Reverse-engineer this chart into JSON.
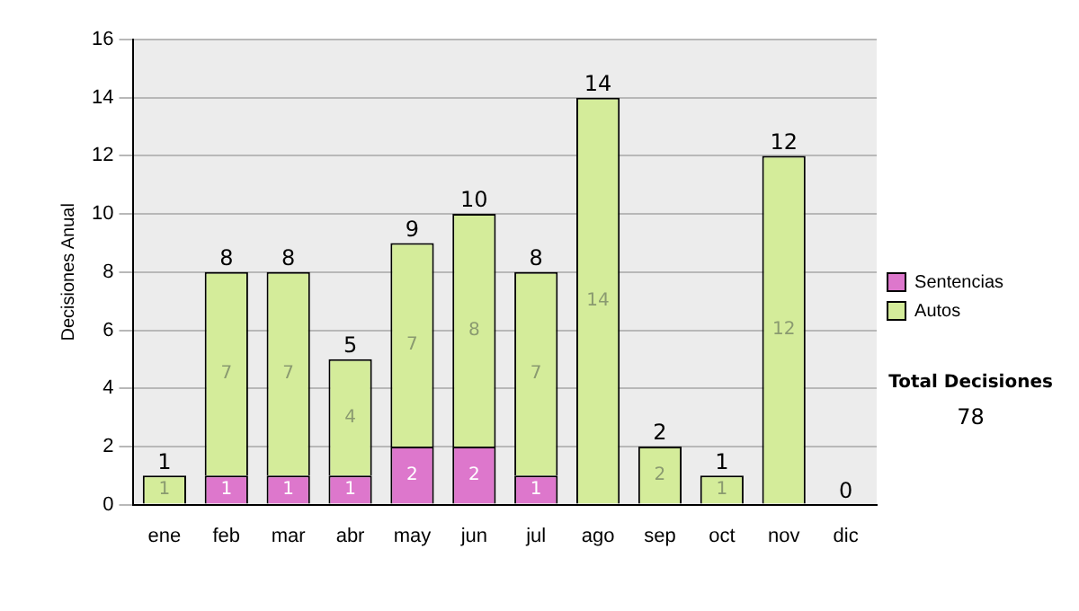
{
  "chart_data": {
    "type": "bar",
    "stacked": true,
    "ylabel": "Decisiones Anual",
    "categories": [
      "ene",
      "feb",
      "mar",
      "abr",
      "may",
      "jun",
      "jul",
      "ago",
      "sep",
      "oct",
      "nov",
      "dic"
    ],
    "series": [
      {
        "name": "Sentencias",
        "color": "#dd77cc",
        "values": [
          0,
          1,
          1,
          1,
          2,
          2,
          1,
          0,
          0,
          0,
          0,
          0
        ],
        "value_labels": [
          null,
          "1",
          "1",
          "1",
          "2",
          "2",
          "1",
          null,
          null,
          null,
          null,
          null
        ]
      },
      {
        "name": "Autos",
        "color": "#d4ec9a",
        "values": [
          1,
          7,
          7,
          4,
          7,
          8,
          7,
          14,
          2,
          1,
          12,
          0
        ],
        "value_labels": [
          "1",
          "7",
          "7",
          "4",
          "7",
          "8",
          "7",
          "14",
          "2",
          "1",
          "12",
          null
        ]
      }
    ],
    "totals": [
      "1",
      "8",
      "8",
      "5",
      "9",
      "10",
      "8",
      "14",
      "2",
      "1",
      "12",
      "0"
    ],
    "ylim": [
      0,
      16
    ],
    "yticks": [
      0,
      2,
      4,
      6,
      8,
      10,
      12,
      14,
      16
    ],
    "grid": "y",
    "legend": "right",
    "annotations": [
      "Total Decisiones",
      "78"
    ]
  }
}
